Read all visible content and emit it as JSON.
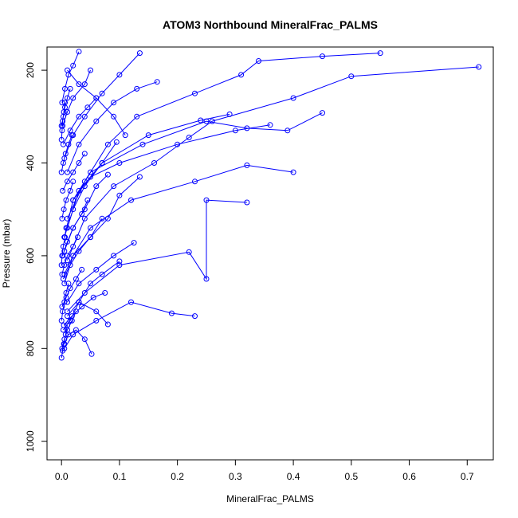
{
  "chart_data": {
    "type": "line",
    "title": "ATOM3 Northbound MineralFrac_PALMS",
    "xlabel": "MineralFrac_PALMS",
    "ylabel": "Pressure (mbar)",
    "xlim": [
      -0.025,
      0.745
    ],
    "ylim": [
      1040,
      150
    ],
    "y_inverted": true,
    "x_ticks": [
      0.0,
      0.1,
      0.2,
      0.3,
      0.4,
      0.5,
      0.6,
      0.7
    ],
    "x_tick_labels": [
      "0.0",
      "0.1",
      "0.2",
      "0.3",
      "0.4",
      "0.5",
      "0.6",
      "0.7"
    ],
    "y_ticks": [
      200,
      400,
      600,
      800,
      1000
    ],
    "y_tick_labels": [
      "200",
      "400",
      "600",
      "800",
      "1000"
    ],
    "grid": false,
    "legend": "none",
    "series_color": "#0000ff",
    "marker": "open-circle",
    "series": [
      {
        "x": [
          0.72,
          0.5,
          0.4,
          0.26,
          0.22,
          0.16,
          0.09,
          0.04,
          0.01
        ],
        "y": [
          193,
          213,
          260,
          310,
          345,
          400,
          450,
          520,
          610
        ]
      },
      {
        "x": [
          0.55,
          0.45,
          0.34,
          0.31,
          0.23,
          0.13,
          0.08,
          0.04,
          0.01
        ],
        "y": [
          163,
          170,
          180,
          210,
          250,
          300,
          360,
          440,
          520
        ]
      },
      {
        "x": [
          0.45,
          0.39,
          0.32,
          0.25,
          0.14,
          0.05,
          0.02,
          0.005
        ],
        "y": [
          292,
          330,
          325,
          310,
          360,
          420,
          480,
          560
        ]
      },
      {
        "x": [
          0.4,
          0.32,
          0.23,
          0.12,
          0.05,
          0.02,
          0.005
        ],
        "y": [
          420,
          405,
          440,
          480,
          540,
          600,
          660
        ]
      },
      {
        "x": [
          0.32,
          0.25,
          0.25,
          0.22,
          0.1,
          0.04,
          0.01
        ],
        "y": [
          485,
          480,
          650,
          592,
          620,
          680,
          720
        ]
      },
      {
        "x": [
          0.23,
          0.19,
          0.12,
          0.06,
          0.02,
          0.005
        ],
        "y": [
          730,
          724,
          700,
          740,
          770,
          800
        ]
      },
      {
        "x": [
          0.29,
          0.24,
          0.15,
          0.07,
          0.03,
          0.01
        ],
        "y": [
          295,
          308,
          340,
          400,
          460,
          540
        ]
      },
      {
        "x": [
          0.165,
          0.13,
          0.09,
          0.06,
          0.03,
          0.01
        ],
        "y": [
          225,
          240,
          270,
          310,
          360,
          420
        ]
      },
      {
        "x": [
          0.135,
          0.1,
          0.07,
          0.04,
          0.02,
          0.005
        ],
        "y": [
          163,
          210,
          250,
          300,
          340,
          390
        ]
      },
      {
        "x": [
          0.36,
          0.3,
          0.2,
          0.1,
          0.05,
          0.02
        ],
        "y": [
          318,
          330,
          360,
          400,
          430,
          480
        ]
      },
      {
        "x": [
          0.135,
          0.1,
          0.08,
          0.05,
          0.02,
          0.005
        ],
        "y": [
          430,
          470,
          520,
          560,
          600,
          640
        ]
      },
      {
        "x": [
          0.125,
          0.09,
          0.06,
          0.03,
          0.01
        ],
        "y": [
          572,
          600,
          630,
          660,
          700
        ]
      },
      {
        "x": [
          0.1,
          0.07,
          0.05,
          0.03,
          0.01
        ],
        "y": [
          612,
          640,
          660,
          700,
          730
        ]
      },
      {
        "x": [
          0.052,
          0.04,
          0.025,
          0.012,
          0.005
        ],
        "y": [
          812,
          780,
          760,
          770,
          790
        ]
      },
      {
        "x": [
          0.08,
          0.06,
          0.03,
          0.015,
          0.003
        ],
        "y": [
          748,
          720,
          700,
          740,
          760
        ]
      },
      {
        "x": [
          0.095,
          0.07,
          0.04,
          0.02,
          0.005
        ],
        "y": [
          355,
          400,
          450,
          500,
          560
        ]
      },
      {
        "x": [
          0.11,
          0.09,
          0.06,
          0.03,
          0.01
        ],
        "y": [
          340,
          300,
          260,
          230,
          200
        ]
      },
      {
        "x": [
          0.08,
          0.06,
          0.04,
          0.02,
          0.005
        ],
        "y": [
          425,
          450,
          500,
          540,
          590
        ]
      },
      {
        "x": [
          0.07,
          0.05,
          0.03,
          0.015,
          0.003
        ],
        "y": [
          520,
          560,
          590,
          620,
          650
        ]
      },
      {
        "x": [
          0.075,
          0.055,
          0.035,
          0.018,
          0.004
        ],
        "y": [
          680,
          690,
          710,
          730,
          750
        ]
      },
      {
        "x": [
          0.06,
          0.045,
          0.03,
          0.015,
          0.003
        ],
        "y": [
          260,
          280,
          300,
          330,
          360
        ]
      },
      {
        "x": [
          0.05,
          0.04,
          0.02,
          0.01,
          0.002
        ],
        "y": [
          200,
          230,
          260,
          290,
          320
        ]
      },
      {
        "x": [
          0.045,
          0.035,
          0.02,
          0.01,
          0.002
        ],
        "y": [
          480,
          510,
          540,
          570,
          600
        ]
      },
      {
        "x": [
          0.04,
          0.03,
          0.02,
          0.01,
          0.002
        ],
        "y": [
          380,
          400,
          420,
          440,
          460
        ]
      },
      {
        "x": [
          0.035,
          0.025,
          0.015,
          0.008,
          0.001
        ],
        "y": [
          630,
          650,
          670,
          690,
          710
        ]
      },
      {
        "x": [
          0.03,
          0.02,
          0.012,
          0.006,
          0.001
        ],
        "y": [
          160,
          190,
          210,
          240,
          270
        ]
      },
      {
        "x": [
          0.028,
          0.02,
          0.01,
          0.005,
          0.001
        ],
        "y": [
          560,
          580,
          600,
          620,
          640
        ]
      },
      {
        "x": [
          0.025,
          0.018,
          0.01,
          0.005,
          0.001
        ],
        "y": [
          720,
          740,
          760,
          780,
          800
        ]
      },
      {
        "x": [
          0.02,
          0.015,
          0.008,
          0.004,
          0.001
        ],
        "y": [
          440,
          460,
          480,
          500,
          520
        ]
      },
      {
        "x": [
          0.018,
          0.012,
          0.007,
          0.003,
          0.0
        ],
        "y": [
          340,
          360,
          380,
          400,
          420
        ]
      },
      {
        "x": [
          0.015,
          0.01,
          0.006,
          0.003,
          0.0
        ],
        "y": [
          240,
          260,
          280,
          300,
          320
        ]
      },
      {
        "x": [
          0.012,
          0.008,
          0.005,
          0.002,
          0.0
        ],
        "y": [
          660,
          680,
          700,
          720,
          740
        ]
      },
      {
        "x": [
          0.01,
          0.007,
          0.004,
          0.002,
          0.0
        ],
        "y": [
          750,
          770,
          790,
          805,
          820
        ]
      },
      {
        "x": [
          0.008,
          0.006,
          0.003,
          0.001,
          0.0
        ],
        "y": [
          540,
          560,
          580,
          600,
          620
        ]
      },
      {
        "x": [
          0.006,
          0.004,
          0.002,
          0.001,
          0.0
        ],
        "y": [
          270,
          290,
          310,
          330,
          350
        ]
      }
    ]
  }
}
